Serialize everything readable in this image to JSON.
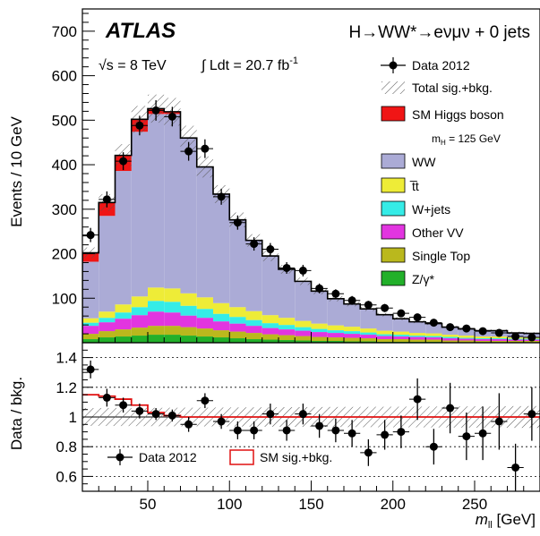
{
  "chart_data": [
    {
      "type": "bar",
      "panel": "main",
      "ylabel": "Events / 10 GeV",
      "ylim": [
        0,
        750
      ],
      "yticks": [
        100,
        200,
        300,
        400,
        500,
        600,
        700
      ],
      "xlim": [
        10,
        290
      ],
      "bin_width": 10,
      "x_bin_low_edges": [
        10,
        20,
        30,
        40,
        50,
        60,
        70,
        80,
        90,
        100,
        110,
        120,
        130,
        140,
        150,
        160,
        170,
        180,
        190,
        200,
        210,
        220,
        230,
        240,
        250,
        260,
        270,
        280
      ],
      "stacking": "stacked",
      "series": [
        {
          "name": "Z/γ*",
          "color": "#22b02a",
          "values": [
            8,
            12,
            14,
            16,
            18,
            18,
            16,
            14,
            12,
            10,
            8,
            7,
            6,
            5,
            4,
            4,
            3,
            3,
            2,
            2,
            2,
            2,
            1,
            1,
            1,
            1,
            1,
            1
          ]
        },
        {
          "name": "Single Top",
          "color": "#bab81d",
          "values": [
            12,
            14,
            16,
            18,
            20,
            20,
            19,
            18,
            16,
            15,
            14,
            12,
            11,
            10,
            9,
            8,
            8,
            7,
            6,
            6,
            5,
            5,
            4,
            4,
            3,
            3,
            3,
            3
          ]
        },
        {
          "name": "Other VV",
          "color": "#e235e0",
          "values": [
            18,
            20,
            24,
            28,
            32,
            30,
            26,
            24,
            20,
            18,
            16,
            14,
            13,
            12,
            11,
            10,
            9,
            8,
            7,
            6,
            6,
            5,
            5,
            4,
            4,
            4,
            3,
            3
          ]
        },
        {
          "name": "W+jets",
          "color": "#35ece7",
          "values": [
            7,
            10,
            14,
            18,
            24,
            24,
            22,
            20,
            17,
            15,
            13,
            11,
            10,
            8,
            7,
            6,
            6,
            5,
            4,
            4,
            3,
            3,
            3,
            2,
            2,
            2,
            2,
            2
          ]
        },
        {
          "name": "t̅t",
          "color": "#eeec37",
          "values": [
            10,
            14,
            18,
            24,
            30,
            30,
            28,
            26,
            24,
            22,
            20,
            18,
            16,
            14,
            12,
            11,
            10,
            9,
            8,
            7,
            6,
            6,
            5,
            5,
            4,
            4,
            3,
            3
          ]
        },
        {
          "name": "WW",
          "color": "#ababd6",
          "values": [
            127,
            215,
            300,
            370,
            390,
            392,
            348,
            293,
            245,
            196,
            159,
            133,
            109,
            89,
            73,
            60,
            51,
            44,
            36,
            29,
            25,
            22,
            17,
            15,
            13,
            13,
            10,
            9
          ]
        },
        {
          "name": "SM Higgs boson",
          "color": "#f01515",
          "values": [
            20,
            30,
            35,
            28,
            12,
            5,
            1,
            0,
            0,
            0,
            0,
            0,
            0,
            0,
            0,
            0,
            0,
            0,
            0,
            0,
            0,
            0,
            0,
            0,
            0,
            0,
            0,
            0
          ]
        }
      ],
      "data_2012": {
        "name": "Data 2012",
        "values": [
          242,
          322,
          408,
          488,
          522,
          508,
          430,
          436,
          328,
          270,
          222,
          210,
          168,
          162,
          122,
          110,
          95,
          85,
          78,
          66,
          57,
          45,
          35,
          32,
          26,
          22,
          14,
          12
        ],
        "errors": [
          16,
          18,
          20,
          22,
          23,
          22,
          21,
          21,
          18,
          16,
          15,
          14,
          13,
          13,
          11,
          10,
          10,
          9,
          9,
          8,
          7.5,
          6.7,
          6,
          5.7,
          5.1,
          4.7,
          3.7,
          3.5
        ]
      },
      "legend_placement": "top-right"
    },
    {
      "type": "scatter",
      "panel": "ratio",
      "ylabel": "Data / bkg.",
      "xlabel": "m_ll [GeV]",
      "ylim": [
        0.5,
        1.5
      ],
      "yticks": [
        0.6,
        0.8,
        1,
        1.2,
        1.4
      ],
      "xticks": [
        50,
        100,
        150,
        200,
        250
      ],
      "xlim": [
        10,
        290
      ],
      "grid_y": [
        0.6,
        0.8,
        1.2,
        1.4
      ],
      "ratio_values": [
        1.32,
        1.13,
        1.08,
        1.04,
        1.02,
        1.01,
        0.95,
        1.11,
        0.97,
        0.91,
        0.91,
        1.02,
        0.91,
        1.02,
        0.94,
        0.91,
        0.89,
        0.76,
        0.88,
        0.9,
        1.12,
        0.8,
        1.06,
        0.87,
        0.89,
        0.97,
        0.66,
        1.02
      ],
      "ratio_errors": [
        0.06,
        0.06,
        0.05,
        0.05,
        0.04,
        0.04,
        0.05,
        0.05,
        0.05,
        0.06,
        0.06,
        0.07,
        0.07,
        0.07,
        0.08,
        0.08,
        0.09,
        0.09,
        0.1,
        0.11,
        0.14,
        0.12,
        0.17,
        0.16,
        0.18,
        0.19,
        0.16,
        0.18
      ],
      "sig_bkg_ratio": [
        1.15,
        1.14,
        1.12,
        1.08,
        1.03,
        1.01,
        1.0,
        1.0,
        1.0,
        1.0,
        1.0,
        1.0,
        1.0,
        1.0,
        1.0,
        1.0,
        1.0,
        1.0,
        1.0,
        1.0,
        1.0,
        1.0,
        1.0,
        1.0,
        1.0,
        1.0,
        1.0,
        1.0
      ],
      "legend_placement": "bottom-left"
    }
  ],
  "text": {
    "atlas": "ATLAS",
    "process": "H→WW*→eνμν + 0 jets",
    "energy": "√s = 8 TeV",
    "lumi_int": "∫ Ldt = 20.7 fb",
    "lumi_exp": "-1",
    "legend_data": "Data 2012",
    "legend_total": "Total sig.+bkg.",
    "legend_higgs": "SM Higgs boson",
    "mh_label": "m",
    "mh_sub": "H",
    "mh_value": " = 125 GeV",
    "ratio_legend_data": "Data 2012",
    "ratio_legend_sig": "SM sig.+bkg.",
    "xlabel_m": "m",
    "xlabel_sub": "ll",
    "xlabel_unit": " [GeV]"
  }
}
